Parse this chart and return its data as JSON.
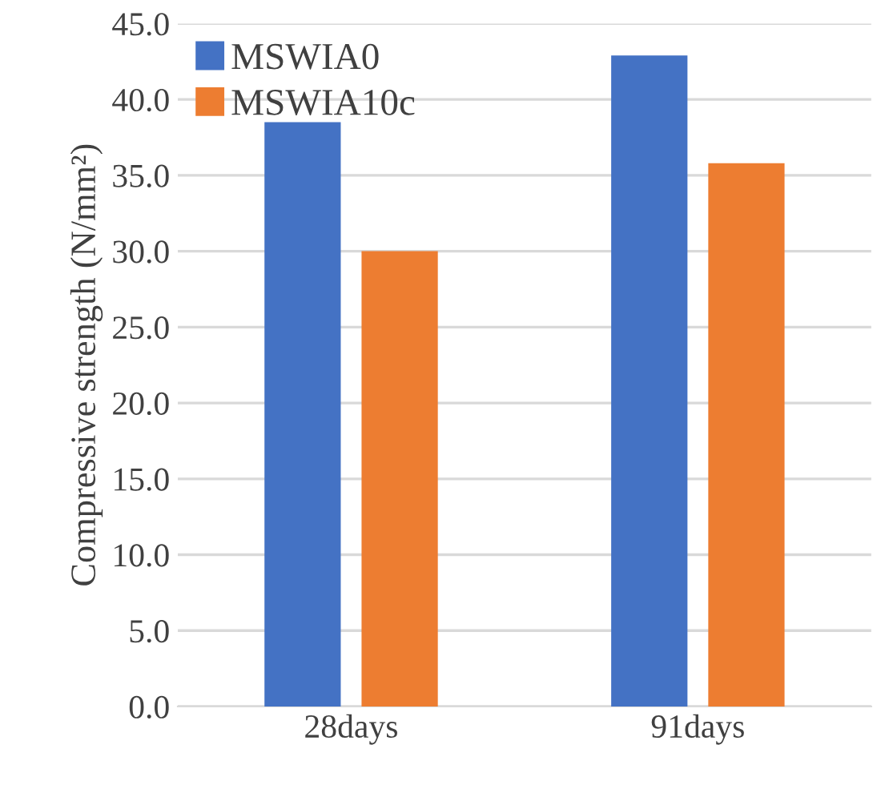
{
  "chart_data": {
    "type": "bar",
    "ylabel": "Compressive strength (N/mm²)",
    "categories": [
      "28days",
      "91days"
    ],
    "series": [
      {
        "name": "MSWIA0",
        "color": "#4472c4",
        "values": [
          38.5,
          42.9
        ]
      },
      {
        "name": "MSWIA10c",
        "color": "#ed7d31",
        "values": [
          30.0,
          35.8
        ]
      }
    ],
    "ylim": [
      0,
      45
    ],
    "yticks": [
      {
        "value": 0,
        "label": "0.0"
      },
      {
        "value": 5,
        "label": "5.0"
      },
      {
        "value": 10,
        "label": "10.0"
      },
      {
        "value": 15,
        "label": "15.0"
      },
      {
        "value": 20,
        "label": "20.0"
      },
      {
        "value": 25,
        "label": "25.0"
      },
      {
        "value": 30,
        "label": "30.0"
      },
      {
        "value": 35,
        "label": "35.0"
      },
      {
        "value": 40,
        "label": "40.0"
      },
      {
        "value": 45,
        "label": "45.0"
      }
    ],
    "grid": "y",
    "legend": "top left"
  }
}
